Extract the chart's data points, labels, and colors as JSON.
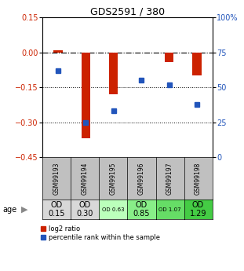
{
  "title": "GDS2591 / 380",
  "samples": [
    "GSM99193",
    "GSM99194",
    "GSM99195",
    "GSM99196",
    "GSM99197",
    "GSM99198"
  ],
  "log2_ratios": [
    0.01,
    -0.37,
    -0.18,
    0.0,
    -0.04,
    -0.1
  ],
  "percentile_ranks": [
    62,
    25,
    33,
    55,
    52,
    38
  ],
  "ylim_left": [
    -0.45,
    0.15
  ],
  "ylim_right": [
    0,
    100
  ],
  "yticks_left": [
    0.15,
    0.0,
    -0.15,
    -0.3,
    -0.45
  ],
  "yticks_right": [
    100,
    75,
    50,
    25,
    0
  ],
  "bar_color": "#cc2200",
  "dot_color": "#2255bb",
  "bg_color": "#ffffff",
  "od_values": [
    "OD\n0.15",
    "OD\n0.30",
    "OD 0.63",
    "OD\n0.85",
    "OD 1.07",
    "OD\n1.29"
  ],
  "od_bg_colors": [
    "#d8d8d8",
    "#d8d8d8",
    "#bbffbb",
    "#88ee88",
    "#66dd66",
    "#44cc44"
  ],
  "sample_bg_color": "#c0c0c0",
  "od_fontsize_small": [
    false,
    false,
    true,
    false,
    true,
    false
  ],
  "legend_log2": "log2 ratio",
  "legend_pct": "percentile rank within the sample",
  "age_label": "age"
}
